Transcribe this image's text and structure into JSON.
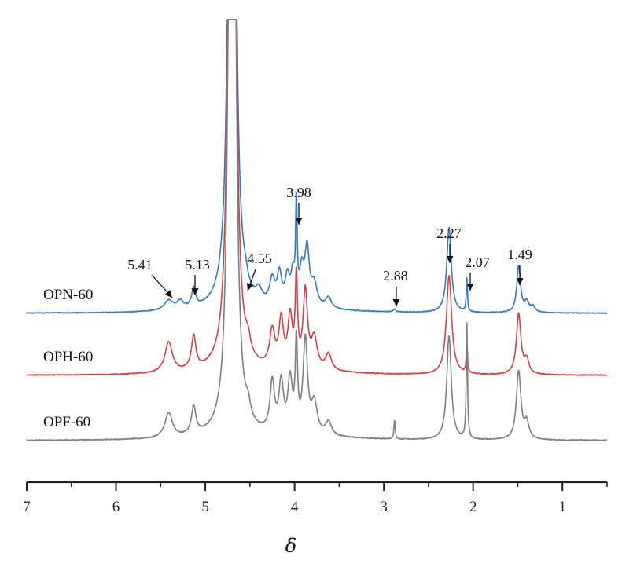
{
  "chart_data": {
    "type": "line",
    "xlabel": "δ",
    "xlim": [
      7.0,
      0.5
    ],
    "x_reversed": true,
    "y_axis_visible": false,
    "grid": false,
    "xticks": [
      7,
      6,
      5,
      4,
      3,
      2,
      1
    ],
    "xtick_labels": [
      "7",
      "6",
      "5",
      "4",
      "3",
      "2",
      "1"
    ],
    "series": [
      {
        "name": "OPN-60",
        "color": "#3a78b8",
        "peaks": [
          {
            "shift": 5.41,
            "height": 0.18,
            "width": 0.06
          },
          {
            "shift": 5.28,
            "height": 0.14,
            "width": 0.04
          },
          {
            "shift": 5.13,
            "height": 0.35,
            "width": 0.025
          },
          {
            "shift": 4.7,
            "height": 40.0,
            "width": 0.022
          },
          {
            "shift": 4.55,
            "height": 0.15,
            "width": 0.03
          },
          {
            "shift": 4.4,
            "height": 0.22,
            "width": 0.04
          },
          {
            "shift": 4.25,
            "height": 0.45,
            "width": 0.035
          },
          {
            "shift": 4.17,
            "height": 0.55,
            "width": 0.03
          },
          {
            "shift": 4.08,
            "height": 0.5,
            "width": 0.03
          },
          {
            "shift": 4.02,
            "height": 0.5,
            "width": 0.025
          },
          {
            "shift": 3.98,
            "height": 1.8,
            "width": 0.01
          },
          {
            "shift": 3.92,
            "height": 0.6,
            "width": 0.03
          },
          {
            "shift": 3.86,
            "height": 1.0,
            "width": 0.03
          },
          {
            "shift": 3.78,
            "height": 0.4,
            "width": 0.04
          },
          {
            "shift": 3.62,
            "height": 0.2,
            "width": 0.04
          },
          {
            "shift": 2.88,
            "height": 0.05,
            "width": 0.015
          },
          {
            "shift": 2.27,
            "height": 1.55,
            "width": 0.03
          },
          {
            "shift": 2.07,
            "height": 0.6,
            "width": 0.008
          },
          {
            "shift": 1.49,
            "height": 0.85,
            "width": 0.025
          },
          {
            "shift": 1.4,
            "height": 0.18,
            "width": 0.03
          },
          {
            "shift": 1.33,
            "height": 0.1,
            "width": 0.03
          }
        ]
      },
      {
        "name": "OPH-60",
        "color": "#c8464a",
        "peaks": [
          {
            "shift": 5.41,
            "height": 0.55,
            "width": 0.05
          },
          {
            "shift": 5.13,
            "height": 0.6,
            "width": 0.03
          },
          {
            "shift": 4.7,
            "height": 40.0,
            "width": 0.022
          },
          {
            "shift": 4.52,
            "height": 0.25,
            "width": 0.03
          },
          {
            "shift": 4.25,
            "height": 0.65,
            "width": 0.035
          },
          {
            "shift": 4.15,
            "height": 0.85,
            "width": 0.03
          },
          {
            "shift": 4.05,
            "height": 0.9,
            "width": 0.03
          },
          {
            "shift": 3.98,
            "height": 1.6,
            "width": 0.015
          },
          {
            "shift": 3.88,
            "height": 1.4,
            "width": 0.03
          },
          {
            "shift": 3.78,
            "height": 0.55,
            "width": 0.04
          },
          {
            "shift": 3.62,
            "height": 0.3,
            "width": 0.04
          },
          {
            "shift": 2.27,
            "height": 1.8,
            "width": 0.035
          },
          {
            "shift": 2.07,
            "height": 0.55,
            "width": 0.008
          },
          {
            "shift": 1.49,
            "height": 1.1,
            "width": 0.03
          },
          {
            "shift": 1.4,
            "height": 0.25,
            "width": 0.03
          }
        ]
      },
      {
        "name": "OPF-60",
        "color": "#7f7f7f",
        "peaks": [
          {
            "shift": 5.41,
            "height": 0.45,
            "width": 0.05
          },
          {
            "shift": 5.13,
            "height": 0.5,
            "width": 0.03
          },
          {
            "shift": 4.7,
            "height": 40.0,
            "width": 0.022
          },
          {
            "shift": 4.52,
            "height": 0.25,
            "width": 0.03
          },
          {
            "shift": 4.25,
            "height": 0.9,
            "width": 0.03
          },
          {
            "shift": 4.15,
            "height": 0.9,
            "width": 0.03
          },
          {
            "shift": 4.05,
            "height": 0.95,
            "width": 0.03
          },
          {
            "shift": 3.98,
            "height": 1.6,
            "width": 0.015
          },
          {
            "shift": 3.88,
            "height": 1.7,
            "width": 0.03
          },
          {
            "shift": 3.78,
            "height": 0.55,
            "width": 0.04
          },
          {
            "shift": 3.62,
            "height": 0.25,
            "width": 0.04
          },
          {
            "shift": 2.88,
            "height": 0.35,
            "width": 0.008
          },
          {
            "shift": 2.27,
            "height": 1.9,
            "width": 0.03
          },
          {
            "shift": 2.07,
            "height": 2.1,
            "width": 0.008
          },
          {
            "shift": 1.49,
            "height": 1.25,
            "width": 0.03
          },
          {
            "shift": 1.4,
            "height": 0.3,
            "width": 0.03
          }
        ]
      }
    ],
    "annotations": [
      {
        "label": "5.41",
        "shift": 5.41
      },
      {
        "label": "5.13",
        "shift": 5.13
      },
      {
        "label": "4.55",
        "shift": 4.55
      },
      {
        "label": "3.98",
        "shift": 3.98
      },
      {
        "label": "2.88",
        "shift": 2.88
      },
      {
        "label": "2.27",
        "shift": 2.27
      },
      {
        "label": "2.07",
        "shift": 2.07
      },
      {
        "label": "1.49",
        "shift": 1.49
      }
    ]
  }
}
